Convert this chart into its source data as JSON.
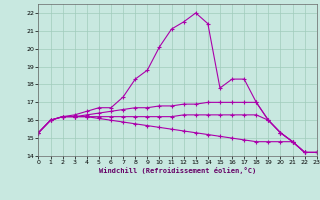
{
  "xlabel": "Windchill (Refroidissement éolien,°C)",
  "bg_color": "#c8e8e0",
  "grid_color": "#a0ccbc",
  "line_color": "#aa00aa",
  "xlim": [
    0,
    23
  ],
  "ylim": [
    14,
    22.5
  ],
  "yticks": [
    14,
    15,
    16,
    17,
    18,
    19,
    20,
    21,
    22
  ],
  "xticks": [
    0,
    1,
    2,
    3,
    4,
    5,
    6,
    7,
    8,
    9,
    10,
    11,
    12,
    13,
    14,
    15,
    16,
    17,
    18,
    19,
    20,
    21,
    22,
    23
  ],
  "series": [
    {
      "x": [
        0,
        1,
        2,
        3,
        4,
        5,
        6,
        7,
        8,
        9,
        10,
        11,
        12,
        13,
        14,
        15,
        16,
        17,
        18,
        19,
        20,
        21,
        22,
        23
      ],
      "y": [
        15.3,
        16.0,
        16.2,
        16.3,
        16.5,
        16.7,
        16.7,
        17.3,
        18.3,
        18.8,
        20.1,
        21.1,
        21.5,
        22.0,
        21.4,
        17.8,
        18.3,
        18.3,
        17.0,
        16.0,
        15.3,
        14.8,
        14.2,
        14.2
      ]
    },
    {
      "x": [
        0,
        1,
        2,
        3,
        4,
        5,
        6,
        7,
        8,
        9,
        10,
        11,
        12,
        13,
        14,
        15,
        16,
        17,
        18,
        19,
        20,
        21,
        22,
        23
      ],
      "y": [
        15.3,
        16.0,
        16.2,
        16.2,
        16.3,
        16.4,
        16.5,
        16.6,
        16.7,
        16.7,
        16.8,
        16.8,
        16.9,
        16.9,
        17.0,
        17.0,
        17.0,
        17.0,
        17.0,
        16.0,
        15.3,
        14.8,
        14.2,
        14.2
      ]
    },
    {
      "x": [
        0,
        1,
        2,
        3,
        4,
        5,
        6,
        7,
        8,
        9,
        10,
        11,
        12,
        13,
        14,
        15,
        16,
        17,
        18,
        19,
        20,
        21,
        22,
        23
      ],
      "y": [
        15.3,
        16.0,
        16.2,
        16.2,
        16.2,
        16.2,
        16.2,
        16.2,
        16.2,
        16.2,
        16.2,
        16.2,
        16.3,
        16.3,
        16.3,
        16.3,
        16.3,
        16.3,
        16.3,
        16.0,
        15.3,
        14.8,
        14.2,
        14.2
      ]
    },
    {
      "x": [
        0,
        1,
        2,
        3,
        4,
        5,
        6,
        7,
        8,
        9,
        10,
        11,
        12,
        13,
        14,
        15,
        16,
        17,
        18,
        19,
        20,
        21,
        22,
        23
      ],
      "y": [
        15.3,
        16.0,
        16.2,
        16.2,
        16.2,
        16.1,
        16.0,
        15.9,
        15.8,
        15.7,
        15.6,
        15.5,
        15.4,
        15.3,
        15.2,
        15.1,
        15.0,
        14.9,
        14.8,
        14.8,
        14.8,
        14.8,
        14.2,
        14.2
      ]
    }
  ]
}
